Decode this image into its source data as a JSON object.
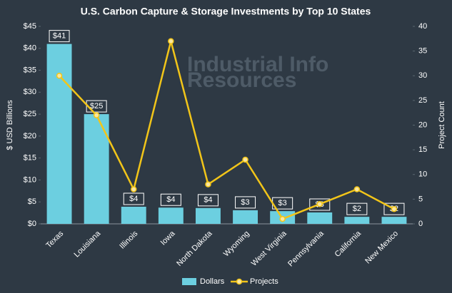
{
  "chart_data": {
    "type": "combo",
    "title": "U.S. Carbon Capture & Storage Investments by Top 10 States",
    "y_label": "$ USD Billions",
    "y2_label": "Project Count",
    "watermark": [
      "Industrial Info",
      "Resources"
    ],
    "categories": [
      "Texas",
      "Louisiana",
      "Illinois",
      "Iowa",
      "North Dakota",
      "Wyoming",
      "West Virginia",
      "Pennsylvania",
      "California",
      "New Mexico"
    ],
    "series": [
      {
        "name": "Dollars",
        "type": "bar",
        "color": "#6ccfe0",
        "values": [
          41,
          25,
          3.9,
          3.7,
          3.6,
          3.1,
          2.9,
          2.6,
          1.6,
          1.6
        ],
        "value_labels": [
          "$41",
          "$25",
          "$4",
          "$4",
          "$4",
          "$3",
          "$3",
          "$3",
          "$2",
          "$2"
        ]
      },
      {
        "name": "Projects",
        "type": "line",
        "axis": "y2",
        "color": "#f2c519",
        "values": [
          30,
          22,
          7,
          37,
          8,
          13,
          1,
          4,
          7,
          3
        ]
      }
    ],
    "ylim": [
      0,
      45
    ],
    "yticks": [
      {
        "value": 0,
        "label": "$0"
      },
      {
        "value": 5,
        "label": "$5"
      },
      {
        "value": 10,
        "label": "$10"
      },
      {
        "value": 15,
        "label": "$15"
      },
      {
        "value": 20,
        "label": "$20"
      },
      {
        "value": 25,
        "label": "$25"
      },
      {
        "value": 30,
        "label": "$30"
      },
      {
        "value": 35,
        "label": "$35"
      },
      {
        "value": 40,
        "label": "$40"
      },
      {
        "value": 45,
        "label": "$45"
      }
    ],
    "y2lim": [
      0,
      40
    ],
    "y2ticks": [
      0,
      5,
      10,
      15,
      20,
      25,
      30,
      35,
      40
    ],
    "legend": "bottom"
  }
}
